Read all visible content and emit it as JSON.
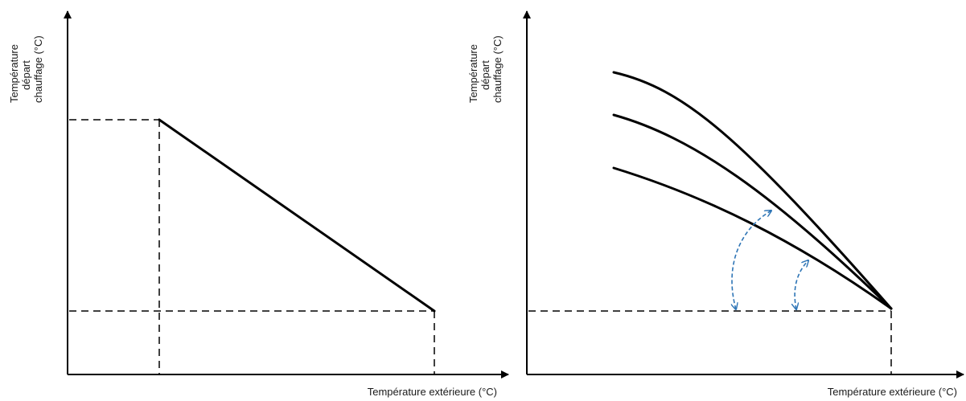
{
  "colors": {
    "line": "#000000",
    "arrow": "#2e75b6",
    "background": "#ffffff",
    "text": "#1a1a1a"
  },
  "left_graph": {
    "y_axis_label": [
      "Température",
      "départ",
      "chauffage (°C)"
    ],
    "x_axis_label": "Température extérieure (°C)"
  },
  "right_graph": {
    "y_axis_label": [
      "Température",
      "départ",
      "chauffage (°C)"
    ],
    "x_axis_label": "Température extérieure (°C)",
    "curve_count": 3
  }
}
